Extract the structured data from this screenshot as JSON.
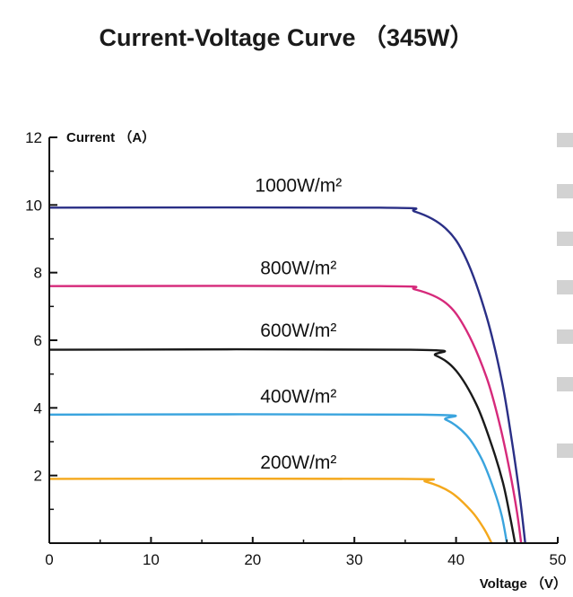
{
  "chart_data": {
    "type": "line",
    "title": "Current-Voltage Curve （345W）",
    "xlabel": "Voltage （V）",
    "ylabel": "Current （A）",
    "xlim": [
      0,
      50
    ],
    "ylim": [
      0,
      12
    ],
    "x_ticks": [
      0,
      10,
      20,
      30,
      40,
      50
    ],
    "y_ticks": [
      2,
      4,
      6,
      8,
      10,
      12
    ],
    "grid": false,
    "legend": "inline-labels",
    "series": [
      {
        "name": "1000W/m²",
        "color": "#2a2f86",
        "isc": 9.92,
        "voc": 46.8,
        "knee": 32.5,
        "x": [
          0,
          32.5,
          36,
          39,
          41,
          43,
          44.5,
          45.5,
          46.3,
          46.8
        ],
        "y": [
          9.92,
          9.92,
          9.8,
          9.3,
          8.4,
          6.7,
          4.8,
          3.0,
          1.3,
          0
        ]
      },
      {
        "name": "800W/m²",
        "color": "#d62a7b",
        "isc": 7.6,
        "voc": 46.4,
        "knee": 32.5,
        "x": [
          0,
          32.5,
          36,
          39,
          41,
          43,
          44.3,
          45.3,
          46.0,
          46.4
        ],
        "y": [
          7.6,
          7.6,
          7.5,
          7.1,
          6.3,
          4.9,
          3.5,
          2.1,
          0.9,
          0
        ]
      },
      {
        "name": "600W/m²",
        "color": "#1a1a1a",
        "isc": 5.72,
        "voc": 45.8,
        "knee": 35.5,
        "x": [
          0,
          35.5,
          38,
          40,
          42,
          43.5,
          44.6,
          45.3,
          45.8
        ],
        "y": [
          5.72,
          5.72,
          5.55,
          5.1,
          4.1,
          2.9,
          1.8,
          0.8,
          0
        ]
      },
      {
        "name": "400W/m²",
        "color": "#3aa4de",
        "isc": 3.8,
        "voc": 45.0,
        "knee": 36.5,
        "x": [
          0,
          36.5,
          39,
          41,
          42.5,
          43.7,
          44.5,
          45.0
        ],
        "y": [
          3.8,
          3.8,
          3.65,
          3.2,
          2.5,
          1.6,
          0.8,
          0
        ]
      },
      {
        "name": "200W/m²",
        "color": "#f4a81c",
        "isc": 1.9,
        "voc": 43.5,
        "knee": 34.5,
        "x": [
          0,
          34.5,
          37,
          39.5,
          41.5,
          42.7,
          43.5
        ],
        "y": [
          1.9,
          1.9,
          1.82,
          1.5,
          0.95,
          0.45,
          0
        ]
      }
    ],
    "labels": [
      {
        "text": "1000W/m²",
        "x": 24.5,
        "y": 10.4
      },
      {
        "text": "800W/m²",
        "x": 24.5,
        "y": 7.95
      },
      {
        "text": "600W/m²",
        "x": 24.5,
        "y": 6.1
      },
      {
        "text": "400W/m²",
        "x": 24.5,
        "y": 4.15
      },
      {
        "text": "200W/m²",
        "x": 24.5,
        "y": 2.2
      }
    ]
  }
}
